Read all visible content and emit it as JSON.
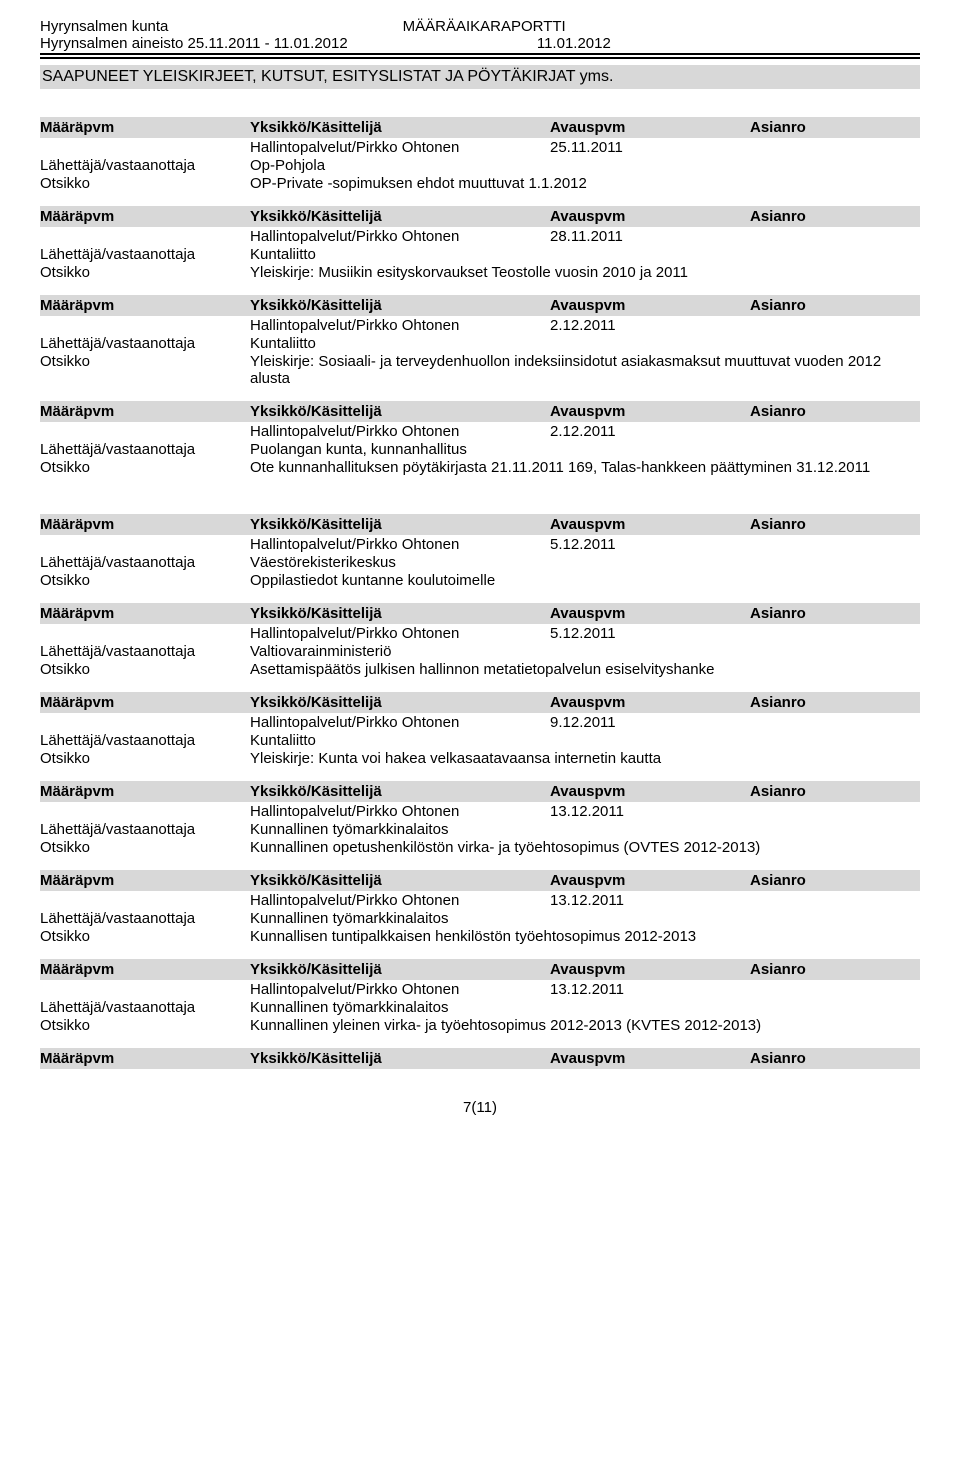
{
  "header": {
    "org": "Hyrynsalmen kunta",
    "report_title": "MÄÄRÄAIKARAPORTTI",
    "dataset": "Hyrynsalmen aineisto 25.11.2011 - 11.01.2012",
    "report_date": "11.01.2012"
  },
  "banner": "SAAPUNEET YLEISKIRJEET, KUTSUT, ESITYSLISTAT JA PÖYTÄKIRJAT yms.",
  "columns": {
    "maarapvm": "Määräpvm",
    "yksikko": "Yksikkö/Käsittelijä",
    "avauspvm": "Avauspvm",
    "asianro": "Asianro"
  },
  "labels": {
    "lahettaja": "Lähettäjä/vastaanottaja",
    "otsikko": "Otsikko"
  },
  "entries": [
    {
      "yksikko": "Hallintopalvelut/Pirkko Ohtonen",
      "avauspvm": "25.11.2011",
      "lahettaja": "Op-Pohjola",
      "otsikko": "OP-Private -sopimuksen ehdot muuttuvat 1.1.2012"
    },
    {
      "yksikko": "Hallintopalvelut/Pirkko Ohtonen",
      "avauspvm": "28.11.2011",
      "lahettaja": "Kuntaliitto",
      "otsikko": "Yleiskirje: Musiikin esityskorvaukset Teostolle vuosin 2010 ja 2011"
    },
    {
      "yksikko": "Hallintopalvelut/Pirkko Ohtonen",
      "avauspvm": "2.12.2011",
      "lahettaja": "Kuntaliitto",
      "otsikko": "Yleiskirje: Sosiaali- ja terveydenhuollon indeksiinsidotut asiakasmaksut muuttuvat vuoden 2012 alusta"
    },
    {
      "yksikko": "Hallintopalvelut/Pirkko Ohtonen",
      "avauspvm": "2.12.2011",
      "lahettaja": "Puolangan kunta, kunnanhallitus",
      "otsikko": "Ote kunnanhallituksen pöytäkirjasta 21.11.2011 169, Talas-hankkeen päättyminen 31.12.2011"
    },
    {
      "yksikko": "Hallintopalvelut/Pirkko Ohtonen",
      "avauspvm": "5.12.2011",
      "lahettaja": "Väestörekisterikeskus",
      "otsikko": "Oppilastiedot kuntanne koulutoimelle"
    },
    {
      "yksikko": "Hallintopalvelut/Pirkko Ohtonen",
      "avauspvm": "5.12.2011",
      "lahettaja": "Valtiovarainministeriö",
      "otsikko": "Asettamispäätös julkisen hallinnon metatietopalvelun esiselvityshanke"
    },
    {
      "yksikko": "Hallintopalvelut/Pirkko Ohtonen",
      "avauspvm": "9.12.2011",
      "lahettaja": "Kuntaliitto",
      "otsikko": "Yleiskirje: Kunta voi hakea velkasaatavaansa internetin kautta"
    },
    {
      "yksikko": "Hallintopalvelut/Pirkko Ohtonen",
      "avauspvm": "13.12.2011",
      "lahettaja": "Kunnallinen työmarkkinalaitos",
      "otsikko": "Kunnallinen opetushenkilöstön virka- ja työehtosopimus (OVTES 2012-2013)"
    },
    {
      "yksikko": "Hallintopalvelut/Pirkko Ohtonen",
      "avauspvm": "13.12.2011",
      "lahettaja": "Kunnallinen työmarkkinalaitos",
      "otsikko": "Kunnallisen tuntipalkkaisen henkilöstön työehtosopimus 2012-2013"
    },
    {
      "yksikko": "Hallintopalvelut/Pirkko Ohtonen",
      "avauspvm": "13.12.2011",
      "lahettaja": "Kunnallinen työmarkkinalaitos",
      "otsikko": "Kunnallinen yleinen virka- ja työehtosopimus 2012-2013 (KVTES 2012-2013)"
    }
  ],
  "trailing_header_only": true,
  "gap_after_index": 3,
  "page_number": "7(11)",
  "colors": {
    "gray_bg": "#d8d8d8",
    "text": "#000000",
    "page_bg": "#ffffff"
  }
}
